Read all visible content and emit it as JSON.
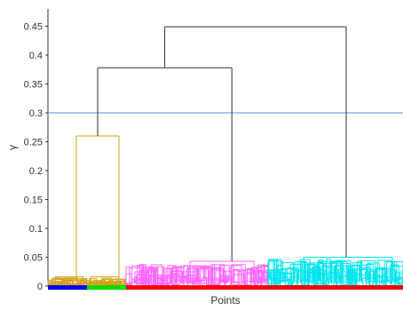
{
  "chart_data": {
    "type": "dendrogram",
    "xlabel": "Points",
    "ylabel": "γ",
    "ylim": [
      0,
      0.48
    ],
    "yticks": [
      0,
      0.05,
      0.1,
      0.15,
      0.2,
      0.25,
      0.3,
      0.35,
      0.4,
      0.45
    ],
    "ytick_labels": [
      "0",
      "0.05",
      "0.1",
      "0.15",
      "0.2",
      "0.25",
      "0.3",
      "0.35",
      "0.4",
      "0.45"
    ],
    "threshold": {
      "y": 0.3,
      "color": "#4a90d9"
    },
    "merges": [
      {
        "name": "root",
        "height": 0.449,
        "color": "#333333"
      },
      {
        "name": "left-main",
        "height": 0.378,
        "color": "#333333"
      },
      {
        "name": "blue-green",
        "height": 0.26,
        "color": "#d4a017"
      },
      {
        "name": "magenta-cluster",
        "height": 0.043,
        "color": "#ff66ff"
      },
      {
        "name": "cyan-cluster",
        "height": 0.05,
        "color": "#00e5ee"
      },
      {
        "name": "blue-cluster",
        "height": 0.016,
        "color": "#d4a017"
      },
      {
        "name": "green-cluster",
        "height": 0.016,
        "color": "#d4a017"
      }
    ],
    "clusters": [
      {
        "name": "blue",
        "color": "#0000ff",
        "x_range": [
          0,
          0.11
        ]
      },
      {
        "name": "green",
        "color": "#00dd00",
        "x_range": [
          0.11,
          0.22
        ]
      },
      {
        "name": "magenta",
        "color": "#ff66ff",
        "x_range": [
          0.22,
          0.62
        ]
      },
      {
        "name": "cyan",
        "color": "#00e5ee",
        "x_range": [
          0.62,
          1.0
        ]
      }
    ],
    "baseline_bar": [
      {
        "color": "#0000ff",
        "x_range": [
          0,
          0.11
        ]
      },
      {
        "color": "#00dd00",
        "x_range": [
          0.11,
          0.22
        ]
      },
      {
        "color": "#ff0000",
        "x_range": [
          0.22,
          1.0
        ]
      }
    ],
    "grid": false
  }
}
